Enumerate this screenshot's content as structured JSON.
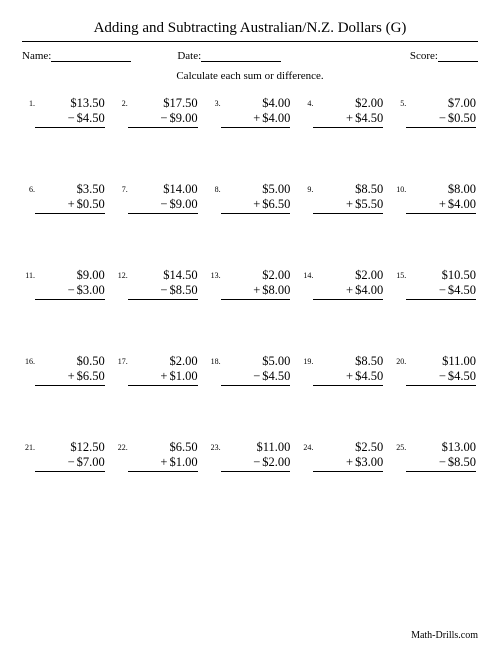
{
  "title": "Adding and Subtracting Australian/N.Z. Dollars (G)",
  "meta": {
    "name_label": "Name:",
    "date_label": "Date:",
    "score_label": "Score:"
  },
  "instruction": "Calculate each sum or difference.",
  "footer": "Math-Drills.com",
  "problems": [
    {
      "n": "1.",
      "top": "$13.50",
      "op": "−",
      "bot": "$4.50"
    },
    {
      "n": "2.",
      "top": "$17.50",
      "op": "−",
      "bot": "$9.00"
    },
    {
      "n": "3.",
      "top": "$4.00",
      "op": "+",
      "bot": "$4.00"
    },
    {
      "n": "4.",
      "top": "$2.00",
      "op": "+",
      "bot": "$4.50"
    },
    {
      "n": "5.",
      "top": "$7.00",
      "op": "−",
      "bot": "$0.50"
    },
    {
      "n": "6.",
      "top": "$3.50",
      "op": "+",
      "bot": "$0.50"
    },
    {
      "n": "7.",
      "top": "$14.00",
      "op": "−",
      "bot": "$9.00"
    },
    {
      "n": "8.",
      "top": "$5.00",
      "op": "+",
      "bot": "$6.50"
    },
    {
      "n": "9.",
      "top": "$8.50",
      "op": "+",
      "bot": "$5.50"
    },
    {
      "n": "10.",
      "top": "$8.00",
      "op": "+",
      "bot": "$4.00"
    },
    {
      "n": "11.",
      "top": "$9.00",
      "op": "−",
      "bot": "$3.00"
    },
    {
      "n": "12.",
      "top": "$14.50",
      "op": "−",
      "bot": "$8.50"
    },
    {
      "n": "13.",
      "top": "$2.00",
      "op": "+",
      "bot": "$8.00"
    },
    {
      "n": "14.",
      "top": "$2.00",
      "op": "+",
      "bot": "$4.00"
    },
    {
      "n": "15.",
      "top": "$10.50",
      "op": "−",
      "bot": "$4.50"
    },
    {
      "n": "16.",
      "top": "$0.50",
      "op": "+",
      "bot": "$6.50"
    },
    {
      "n": "17.",
      "top": "$2.00",
      "op": "+",
      "bot": "$1.00"
    },
    {
      "n": "18.",
      "top": "$5.00",
      "op": "−",
      "bot": "$4.50"
    },
    {
      "n": "19.",
      "top": "$8.50",
      "op": "+",
      "bot": "$4.50"
    },
    {
      "n": "20.",
      "top": "$11.00",
      "op": "−",
      "bot": "$4.50"
    },
    {
      "n": "21.",
      "top": "$12.50",
      "op": "−",
      "bot": "$7.00"
    },
    {
      "n": "22.",
      "top": "$6.50",
      "op": "+",
      "bot": "$1.00"
    },
    {
      "n": "23.",
      "top": "$11.00",
      "op": "−",
      "bot": "$2.00"
    },
    {
      "n": "24.",
      "top": "$2.50",
      "op": "+",
      "bot": "$3.00"
    },
    {
      "n": "25.",
      "top": "$13.00",
      "op": "−",
      "bot": "$8.50"
    }
  ]
}
